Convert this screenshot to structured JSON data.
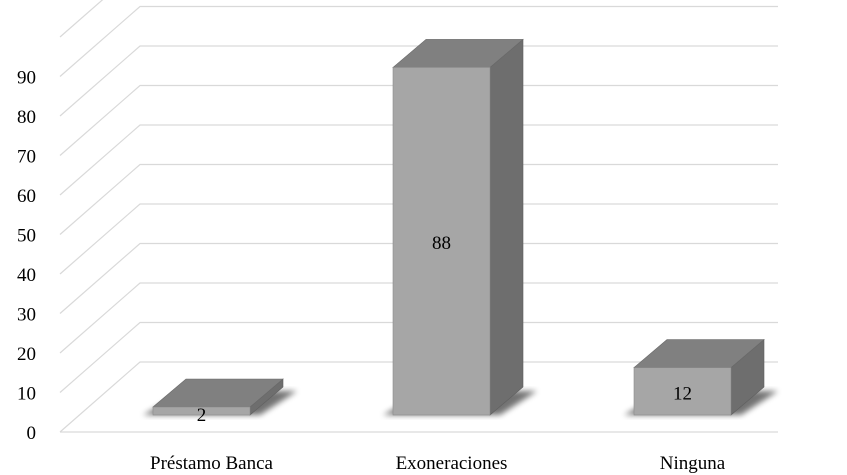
{
  "chart_data": {
    "type": "bar",
    "style": "3d-column",
    "categories": [
      "Préstamo Banca",
      "Exoneraciones",
      "Ninguna"
    ],
    "values": [
      2,
      88,
      12
    ],
    "data_labels": [
      "2",
      "88",
      "12"
    ],
    "title": "",
    "xlabel": "",
    "ylabel": "",
    "ylim": [
      0,
      90
    ],
    "yticks": [
      0,
      10,
      20,
      30,
      40,
      50,
      60,
      70,
      80,
      90
    ],
    "ytick_labels": [
      "0",
      "10",
      "20",
      "30",
      "40",
      "50",
      "60",
      "70",
      "80",
      "90"
    ],
    "grid": true,
    "legend": "none",
    "colors": {
      "front": "#a6a6a6",
      "top": "#808080",
      "side": "#6e6e6e",
      "grid": "#d9d9d9"
    }
  }
}
